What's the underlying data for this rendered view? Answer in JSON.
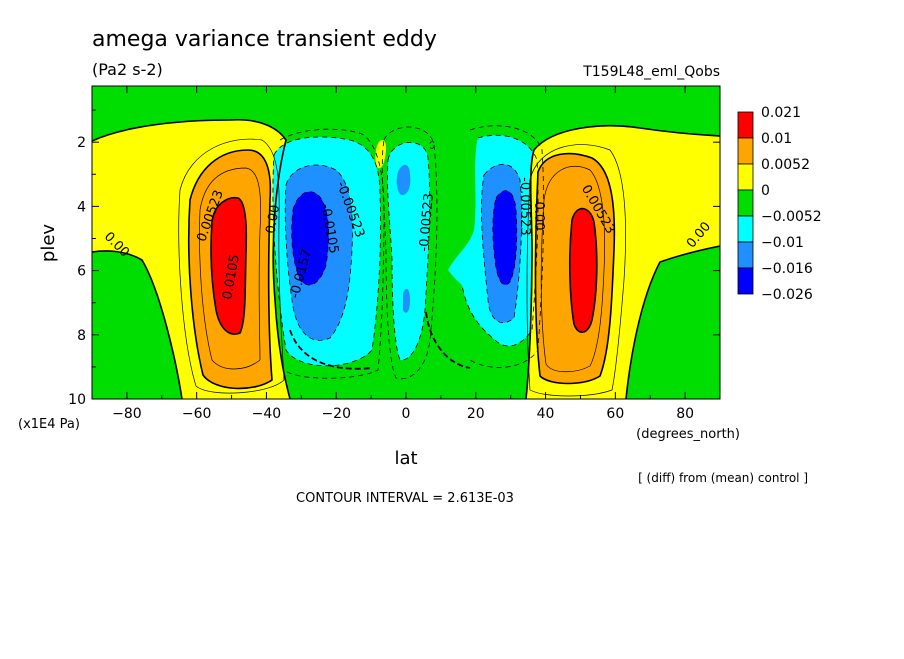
{
  "header": {
    "title": "amega variance transient eddy",
    "units": "(Pa2 s-2)",
    "experiment": "T159L48_eml_Qobs"
  },
  "footer": {
    "diff_note": "[ (diff) from (mean) control ]",
    "contour_interval": "CONTOUR INTERVAL = 2.613E-03"
  },
  "chart_data": {
    "type": "contour",
    "xlabel": "lat",
    "xunit": "(degrees_north)",
    "ylabel": "plev",
    "yunit": "(x1E4 Pa)",
    "xlim": [
      -90,
      90
    ],
    "ylim": [
      10,
      0.25
    ],
    "xticks": [
      -80,
      -60,
      -40,
      -20,
      0,
      20,
      40,
      60,
      80
    ],
    "yticks": [
      2,
      4,
      6,
      8,
      10
    ],
    "legend_position": "right",
    "levels": [
      {
        "label": "0.021",
        "color": "#ff0000"
      },
      {
        "label": "0.01",
        "color": "#ffa500"
      },
      {
        "label": "0.0052",
        "color": "#ffff00"
      },
      {
        "label": "0",
        "color": "#00dd00"
      },
      {
        "label": "−0.0052",
        "color": "#00ffff"
      },
      {
        "label": "−0.01",
        "color": "#1e90ff"
      },
      {
        "label": "−0.016",
        "color": "#0000ff"
      },
      {
        "label": "−0.026",
        "color": "#0000ff"
      }
    ],
    "contour_labels": [
      {
        "text": "0.00523",
        "lat": -56,
        "plev": 4.3,
        "angle": -70
      },
      {
        "text": "0.0105",
        "lat": -50,
        "plev": 6.2,
        "angle": -80
      },
      {
        "text": "0.00",
        "lat": -83,
        "plev": 5.2,
        "angle": 45
      },
      {
        "text": "0.00",
        "lat": -38,
        "plev": 4.4,
        "angle": -80
      },
      {
        "text": "-0.0157",
        "lat": -30,
        "plev": 6.1,
        "angle": -75
      },
      {
        "text": "-0.0105",
        "lat": -22,
        "plev": 4.7,
        "angle": 80
      },
      {
        "text": "-0.00523",
        "lat": -16,
        "plev": 4.1,
        "angle": 70
      },
      {
        "text": "-0.00523",
        "lat": 6,
        "plev": 4.5,
        "angle": -85
      },
      {
        "text": "-0.00523",
        "lat": 34,
        "plev": 4.0,
        "angle": 90
      },
      {
        "text": "0.00",
        "lat": 38,
        "plev": 4.3,
        "angle": 90
      },
      {
        "text": "0.00523",
        "lat": 55,
        "plev": 4.1,
        "angle": 60
      },
      {
        "text": "0.00",
        "lat": 84,
        "plev": 4.9,
        "angle": -50
      }
    ]
  }
}
